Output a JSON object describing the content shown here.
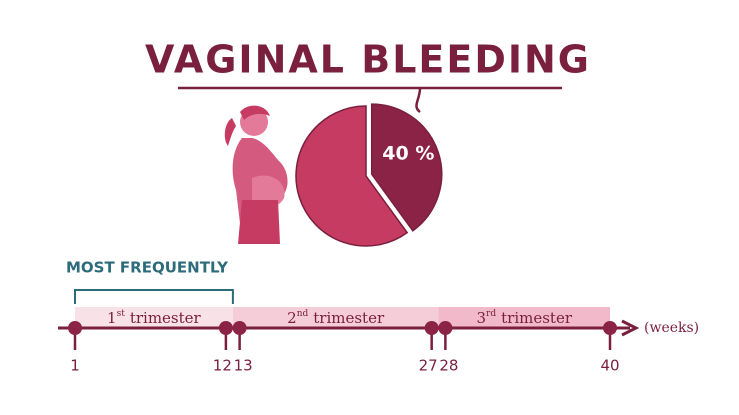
{
  "title": "VAGINAL BLEEDING",
  "chart_data": {
    "type": "pie",
    "values": [
      40,
      60
    ],
    "value_labels": [
      "40 %",
      null
    ],
    "colors": [
      "#8b2346",
      "#c63b62"
    ]
  },
  "bracket_label": "MOST FREQUENTLY",
  "timeline": {
    "unit": "(weeks)",
    "ticks": [
      1,
      12,
      13,
      27,
      28,
      40
    ],
    "trimesters": [
      {
        "ordinal": "1",
        "suffix": "st",
        "label": "trimester",
        "color": "#f9e1e8"
      },
      {
        "ordinal": "2",
        "suffix": "nd",
        "label": "trimester",
        "color": "#f5cdd9"
      },
      {
        "ordinal": "3",
        "suffix": "rd",
        "label": "trimester",
        "color": "#f1b9c9"
      }
    ]
  }
}
